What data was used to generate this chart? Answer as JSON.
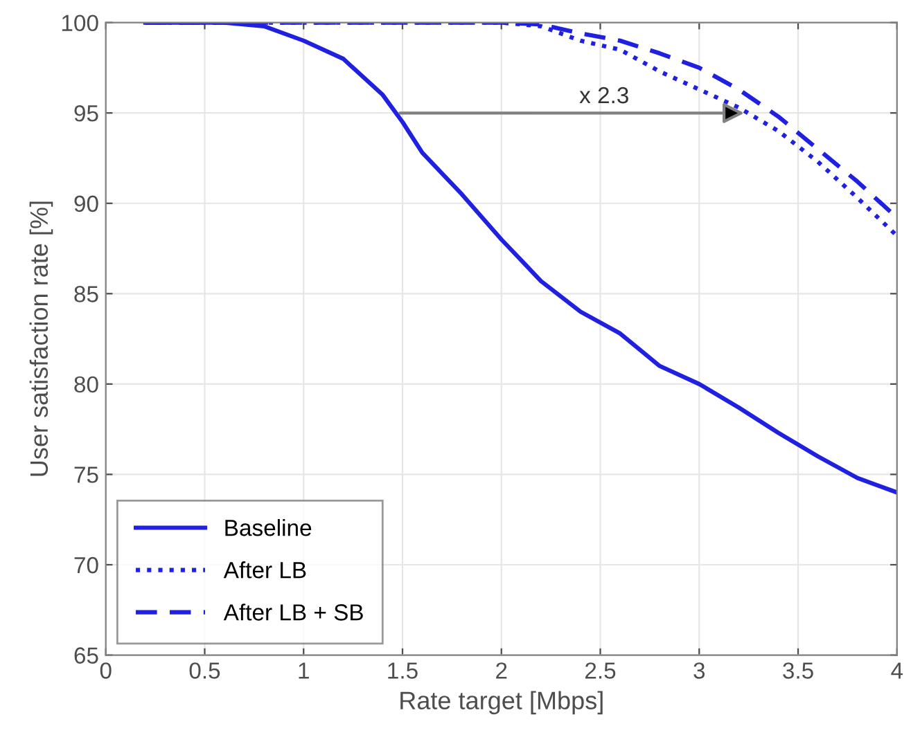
{
  "chart_data": {
    "type": "line",
    "xlabel": "Rate target [Mbps]",
    "ylabel": "User satisfaction rate [%]",
    "xlim": [
      0,
      4
    ],
    "ylim": [
      65,
      100
    ],
    "xticks": [
      0,
      0.5,
      1,
      1.5,
      2,
      2.5,
      3,
      3.5,
      4
    ],
    "yticks": [
      65,
      70,
      75,
      80,
      85,
      90,
      95,
      100
    ],
    "grid": true,
    "legend": "bottom left",
    "marker": "none",
    "annotations": [
      "x 2.3"
    ],
    "series": [
      {
        "name": "Baseline",
        "color": "#2020e0",
        "line_style": "solid",
        "x": [
          0.2,
          0.6,
          0.8,
          1.0,
          1.2,
          1.4,
          1.5,
          1.6,
          1.8,
          2.0,
          2.2,
          2.4,
          2.6,
          2.8,
          3.0,
          3.2,
          3.4,
          3.6,
          3.8,
          4.0
        ],
        "values": [
          100,
          100,
          99.8,
          99,
          98,
          96,
          94.5,
          92.8,
          90.5,
          88,
          85.7,
          84,
          82.8,
          81,
          80,
          78.7,
          77.3,
          76,
          74.8,
          74
        ]
      },
      {
        "name": "After LB",
        "color": "#2020e0",
        "line_style": "dotted",
        "x": [
          0.2,
          1.0,
          1.5,
          2.0,
          2.2,
          2.4,
          2.6,
          2.8,
          3.0,
          3.2,
          3.4,
          3.6,
          3.8,
          4.0
        ],
        "values": [
          100,
          100,
          100,
          100,
          99.8,
          99,
          98.5,
          97.3,
          96.3,
          95.3,
          94,
          92.3,
          90.3,
          88.2
        ]
      },
      {
        "name": "After LB + SB",
        "color": "#2020e0",
        "line_style": "dashed",
        "x": [
          0.2,
          1.0,
          1.5,
          2.0,
          2.2,
          2.4,
          2.6,
          2.8,
          3.0,
          3.2,
          3.4,
          3.6,
          3.8,
          4.0
        ],
        "values": [
          100,
          100,
          100,
          100,
          99.9,
          99.4,
          99,
          98.3,
          97.5,
          96.3,
          94.8,
          93,
          91.2,
          89.2
        ]
      }
    ]
  }
}
